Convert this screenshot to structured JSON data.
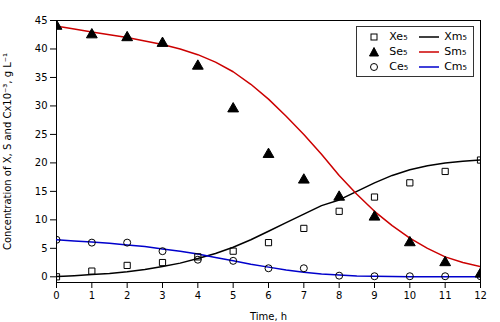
{
  "chart_data": {
    "type": "line",
    "xlabel": "Time, h",
    "ylabel": "Concentration of X, S and Cx10⁻³, g L⁻¹",
    "xlim": [
      0,
      12
    ],
    "ylim": [
      -1,
      45
    ],
    "xticks": [
      0,
      1,
      2,
      3,
      4,
      5,
      6,
      7,
      8,
      9,
      10,
      11,
      12
    ],
    "yticks": [
      0,
      5,
      10,
      15,
      20,
      25,
      30,
      35,
      40,
      45
    ],
    "grid": false,
    "legend": "upper right",
    "series": [
      {
        "name": "Xe₅",
        "type": "scatter",
        "marker": "square-open",
        "color": "#000000",
        "x": [
          0,
          1,
          2,
          3,
          4,
          5,
          6,
          7,
          8,
          9,
          10,
          11,
          12
        ],
        "values": [
          0.0,
          1.0,
          2.0,
          2.5,
          3.5,
          4.5,
          6.0,
          8.5,
          11.5,
          14.0,
          16.5,
          18.5,
          20.5
        ]
      },
      {
        "name": "Xm₅",
        "type": "line",
        "line_style": "solid",
        "color": "#000000",
        "x": [
          0,
          0.2,
          0.5,
          1,
          1.5,
          2,
          2.5,
          3,
          3.5,
          4,
          4.5,
          5,
          5.5,
          6,
          6.5,
          7,
          7.5,
          8,
          8.5,
          9,
          9.5,
          10,
          10.5,
          11,
          11.5,
          12
        ],
        "values": [
          0.05,
          0.1,
          0.2,
          0.4,
          0.6,
          0.9,
          1.3,
          1.8,
          2.4,
          3.2,
          4.1,
          5.2,
          6.5,
          8.0,
          9.5,
          11.0,
          12.5,
          13.5,
          15.0,
          16.5,
          17.8,
          18.8,
          19.5,
          20.0,
          20.3,
          20.5
        ]
      },
      {
        "name": "Se₅",
        "type": "scatter",
        "marker": "triangle",
        "color": "#000000",
        "x": [
          0,
          1,
          2,
          3,
          4,
          5,
          6,
          7,
          8,
          9,
          10,
          11,
          12
        ],
        "values": [
          44.0,
          42.5,
          42.0,
          41.0,
          37.0,
          29.5,
          21.5,
          17.0,
          14.0,
          10.5,
          6.0,
          2.5,
          0.5
        ]
      },
      {
        "name": "Sm₅",
        "type": "line",
        "line_style": "solid",
        "color": "#cc0000",
        "x": [
          0,
          0.2,
          0.5,
          1,
          1.5,
          2,
          2.5,
          3,
          3.5,
          4,
          4.5,
          5,
          5.5,
          6,
          6.5,
          7,
          7.5,
          8,
          8.5,
          9,
          9.5,
          10,
          10.5,
          11,
          11.5,
          12
        ],
        "values": [
          44.0,
          43.8,
          43.5,
          43.0,
          42.5,
          42.0,
          41.4,
          40.8,
          40.0,
          39.0,
          37.7,
          36.0,
          33.8,
          31.2,
          28.2,
          25.0,
          21.5,
          17.8,
          14.5,
          11.5,
          9.0,
          6.8,
          5.0,
          3.5,
          2.5,
          1.8
        ]
      },
      {
        "name": "Ce₅",
        "type": "scatter",
        "marker": "circle-open",
        "color": "#000000",
        "x": [
          0,
          1,
          2,
          3,
          4,
          5,
          6,
          7,
          8,
          9,
          10,
          11,
          12
        ],
        "values": [
          6.5,
          6.0,
          6.0,
          4.5,
          3.0,
          2.8,
          1.5,
          1.5,
          0.2,
          0.1,
          0.1,
          0.1,
          0.1
        ]
      },
      {
        "name": "Cm₅",
        "type": "line",
        "line_style": "solid",
        "color": "#0000cc",
        "x": [
          0,
          0.5,
          1,
          1.5,
          2,
          2.5,
          3,
          3.5,
          4,
          4.5,
          5,
          5.5,
          6,
          6.5,
          7,
          7.5,
          8,
          8.5,
          9,
          9.5,
          10,
          10.5,
          11,
          11.5,
          12
        ],
        "values": [
          6.5,
          6.3,
          6.1,
          5.9,
          5.6,
          5.3,
          4.9,
          4.5,
          4.0,
          3.4,
          2.8,
          2.2,
          1.7,
          1.2,
          0.8,
          0.5,
          0.3,
          0.15,
          0.08,
          0.05,
          0.03,
          0.02,
          0.01,
          0.005,
          0.0
        ]
      }
    ]
  }
}
